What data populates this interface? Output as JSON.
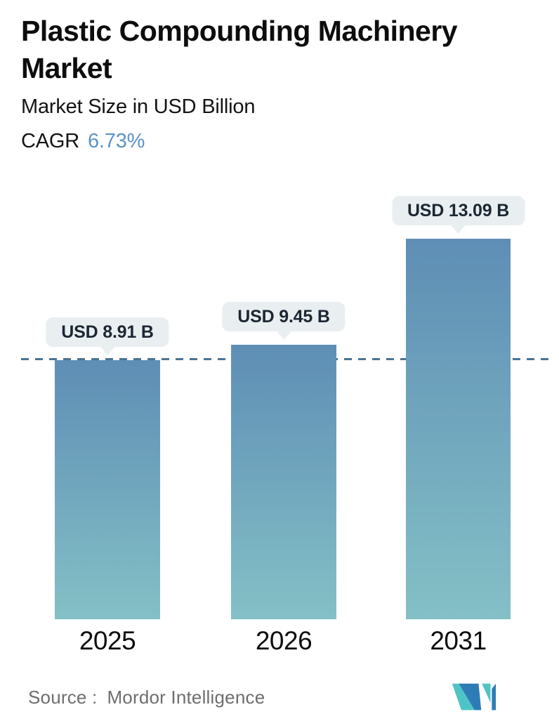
{
  "header": {
    "title": "Plastic Compounding Machinery Market",
    "subtitle": "Market Size in USD Billion",
    "cagr_label": "CAGR",
    "cagr_value": "6.73%"
  },
  "chart_data": {
    "type": "bar",
    "title": "Plastic Compounding Machinery Market",
    "subtitle": "Market Size in USD Billion",
    "unit": "USD Billion",
    "cagr_percent": 6.73,
    "categories": [
      "2025",
      "2026",
      "2031"
    ],
    "values": [
      8.91,
      9.45,
      13.09
    ],
    "value_labels": [
      "USD 8.91 B",
      "USD 9.45 B",
      "USD 13.09 B"
    ],
    "ylim": [
      0,
      13.5
    ],
    "grid": false,
    "legend": false,
    "baseline_marker": {
      "style": "dashed-horizontal-line",
      "value": 8.91
    },
    "colors": {
      "bar_gradient_top": "#5e8eb5",
      "bar_gradient_bottom": "#84c0c6",
      "dashed_line": "#4a7496",
      "label_bubble_bg": "#e9eff1",
      "label_text": "#1c2733",
      "cagr_accent": "#5b93c5",
      "logo_blue": "#2e7cb5",
      "logo_teal": "#4fc4c6"
    }
  },
  "footer": {
    "source_label": "Source :",
    "source_value": "Mordor Intelligence",
    "logo_name": "mordor-intelligence-logo"
  }
}
